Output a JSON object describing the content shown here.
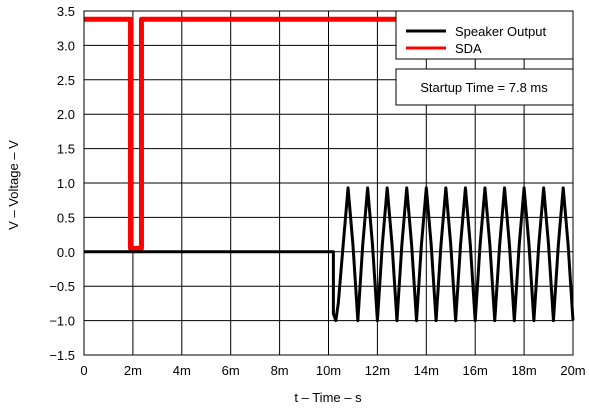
{
  "chart_data": {
    "type": "line",
    "xlabel": "t – Time – s",
    "ylabel": "V – Voltage – V",
    "xlim": [
      0,
      0.02
    ],
    "ylim": [
      -1.5,
      3.5
    ],
    "x_ticks": [
      0,
      0.002,
      0.004,
      0.006,
      0.008,
      0.01,
      0.012,
      0.014,
      0.016,
      0.018,
      0.02
    ],
    "x_tick_labels": [
      "0",
      "2m",
      "4m",
      "6m",
      "8m",
      "10m",
      "12m",
      "14m",
      "16m",
      "18m",
      "20m"
    ],
    "y_ticks": [
      -1.5,
      -1.0,
      -0.5,
      0.0,
      0.5,
      1.0,
      1.5,
      2.0,
      2.5,
      3.0,
      3.5
    ],
    "y_tick_labels": [
      "−1.5",
      "−1.0",
      "−0.5",
      "0.0",
      "0.5",
      "1.0",
      "1.5",
      "2.0",
      "2.5",
      "3.0",
      "3.5"
    ],
    "grid": true,
    "legend_position": "top-right",
    "annotation": "Startup Time = 7.8 ms",
    "series": [
      {
        "name": "Speaker Output",
        "color": "#000000",
        "x": [
          0,
          0.0102,
          0.0102,
          0.0103,
          0.0104,
          0.0106,
          0.0108,
          0.011,
          0.0112,
          0.0114,
          0.0116,
          0.0118,
          0.012,
          0.0122,
          0.0124,
          0.0126,
          0.0128,
          0.013,
          0.0132,
          0.0134,
          0.0136,
          0.0138,
          0.014,
          0.0142,
          0.0144,
          0.0146,
          0.0148,
          0.015,
          0.0152,
          0.0154,
          0.0156,
          0.0158,
          0.016,
          0.0162,
          0.0164,
          0.0166,
          0.0168,
          0.017,
          0.0172,
          0.0174,
          0.0176,
          0.0178,
          0.018,
          0.0182,
          0.0184,
          0.0186,
          0.0188,
          0.019,
          0.0192,
          0.0194,
          0.0196,
          0.0198,
          0.02
        ],
        "y": [
          0,
          0,
          -0.9,
          -1.0,
          -0.75,
          0.1,
          0.93,
          0.1,
          -1.0,
          0.1,
          0.93,
          0.1,
          -1.0,
          0.1,
          0.93,
          0.1,
          -1.0,
          0.1,
          0.93,
          0.1,
          -1.0,
          0.1,
          0.93,
          0.1,
          -1.0,
          0.1,
          0.93,
          0.1,
          -1.0,
          0.1,
          0.93,
          0.1,
          -1.0,
          0.1,
          0.93,
          0.1,
          -1.0,
          0.1,
          0.93,
          0.1,
          -1.0,
          0.1,
          0.93,
          0.1,
          -1.0,
          0.1,
          0.93,
          0.1,
          -1.0,
          0.1,
          0.93,
          0.1,
          -1.0
        ]
      },
      {
        "name": "SDA",
        "color": "#ff0000",
        "x": [
          0,
          0.0019,
          0.0019,
          0.00235,
          0.00235,
          0.02
        ],
        "y": [
          3.38,
          3.38,
          0.05,
          0.05,
          3.38,
          3.38
        ]
      }
    ]
  }
}
